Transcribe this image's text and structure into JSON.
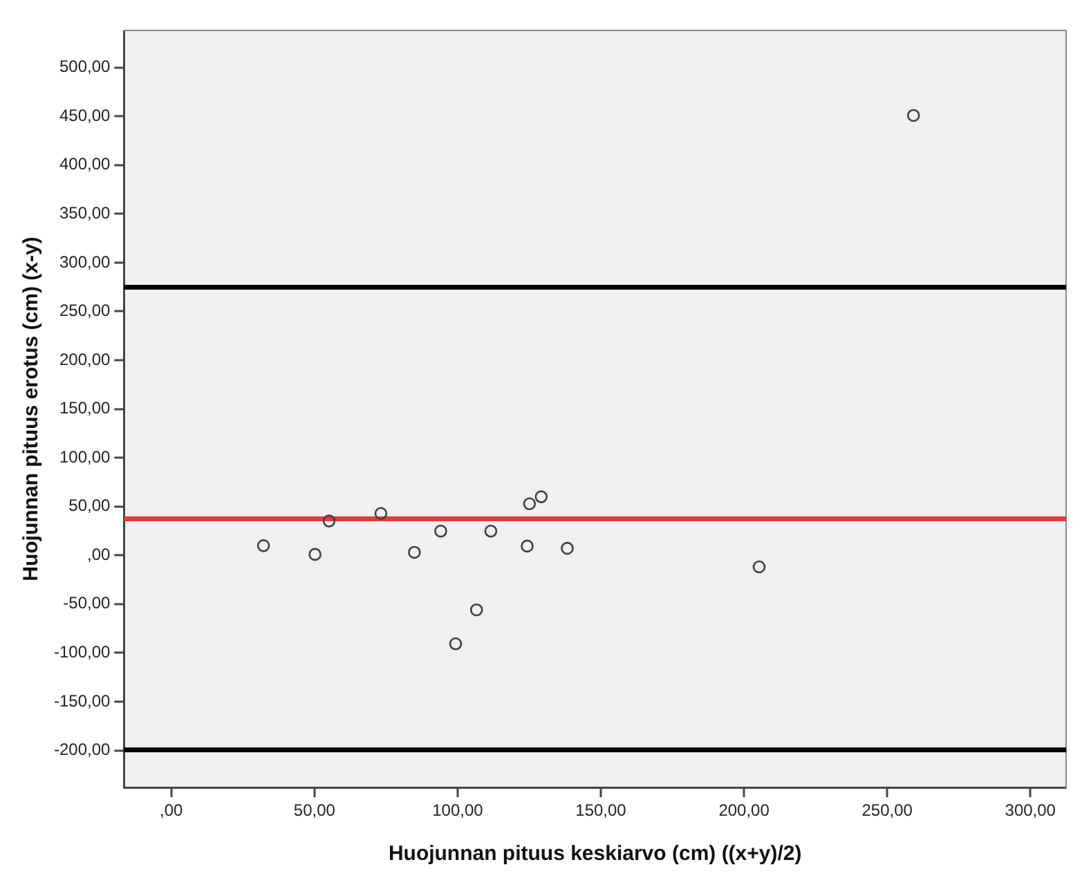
{
  "chart_data": {
    "type": "scatter",
    "xlabel": "Huojunnan pituus keskiarvo (cm) ((x+y)/2)",
    "ylabel": "Huojunnan pituus erotus (cm) (x-y)",
    "x": [
      32.2,
      50.2,
      55.1,
      73.2,
      84.9,
      94.1,
      99.3,
      106.6,
      111.6,
      124.3,
      125.1,
      129.2,
      138.3,
      205.3,
      259.2
    ],
    "series": [
      {
        "color": "#404040",
        "values": [
          9.9,
          1,
          35.2,
          42.9,
          3.1,
          24.8,
          -90.7,
          -55.9,
          24.8,
          9.5,
          52.8,
          60,
          7.2,
          -11.8,
          450.9
        ]
      }
    ],
    "marker": "circle",
    "xlim": [
      -16.5,
      312.5
    ],
    "ylim": [
      -238,
      538
    ],
    "xticks": [
      {
        "value": 0,
        "label": ",00"
      },
      {
        "value": 50,
        "label": "50,00"
      },
      {
        "value": 100,
        "label": "100,00"
      },
      {
        "value": 150,
        "label": "150,00"
      },
      {
        "value": 200,
        "label": "200,00"
      },
      {
        "value": 250,
        "label": "250,00"
      },
      {
        "value": 300,
        "label": "300,00"
      }
    ],
    "yticks": [
      {
        "value": -200,
        "label": "-200,00"
      },
      {
        "value": -150,
        "label": "-150,00"
      },
      {
        "value": -100,
        "label": "-100,00"
      },
      {
        "value": -50,
        "label": "-50,00"
      },
      {
        "value": 0,
        "label": ",00"
      },
      {
        "value": 50,
        "label": "50,00"
      },
      {
        "value": 100,
        "label": "100,00"
      },
      {
        "value": 150,
        "label": "150,00"
      },
      {
        "value": 200,
        "label": "200,00"
      },
      {
        "value": 250,
        "label": "250,00"
      },
      {
        "value": 300,
        "label": "300,00"
      },
      {
        "value": 350,
        "label": "350,00"
      },
      {
        "value": 400,
        "label": "400,00"
      },
      {
        "value": 450,
        "label": "450,00"
      },
      {
        "value": 500,
        "label": "500,00"
      }
    ],
    "grid": false,
    "legend": false,
    "ref_lines": [
      {
        "axis": "y",
        "value": 274.8,
        "color": "#000000"
      },
      {
        "axis": "y",
        "value": 37.5,
        "color": "#e8393c"
      },
      {
        "axis": "y",
        "value": -199.4,
        "color": "#000000"
      }
    ]
  }
}
